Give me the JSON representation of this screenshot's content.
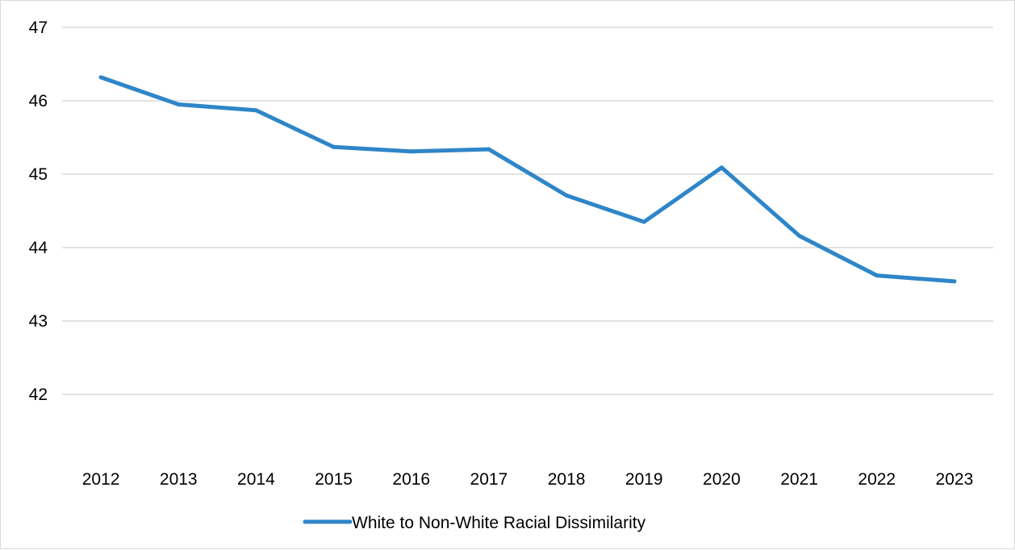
{
  "chart_data": {
    "type": "line",
    "title": "",
    "xlabel": "",
    "ylabel": "",
    "categories": [
      "2012",
      "2013",
      "2014",
      "2015",
      "2016",
      "2017",
      "2018",
      "2019",
      "2020",
      "2021",
      "2022",
      "2023"
    ],
    "series": [
      {
        "name": "White to Non-White Racial Dissimilarity",
        "values": [
          46.32,
          45.95,
          45.87,
          45.37,
          45.31,
          45.34,
          44.71,
          44.35,
          45.09,
          44.16,
          43.62,
          43.54
        ],
        "color": "#2e86c8"
      }
    ],
    "ylim": [
      41.2,
      47
    ],
    "yticks": [
      "42",
      "43",
      "44",
      "45",
      "46",
      "47"
    ],
    "grid": true,
    "gridColor": "#d9d9d9",
    "legend_position": "bottom"
  }
}
